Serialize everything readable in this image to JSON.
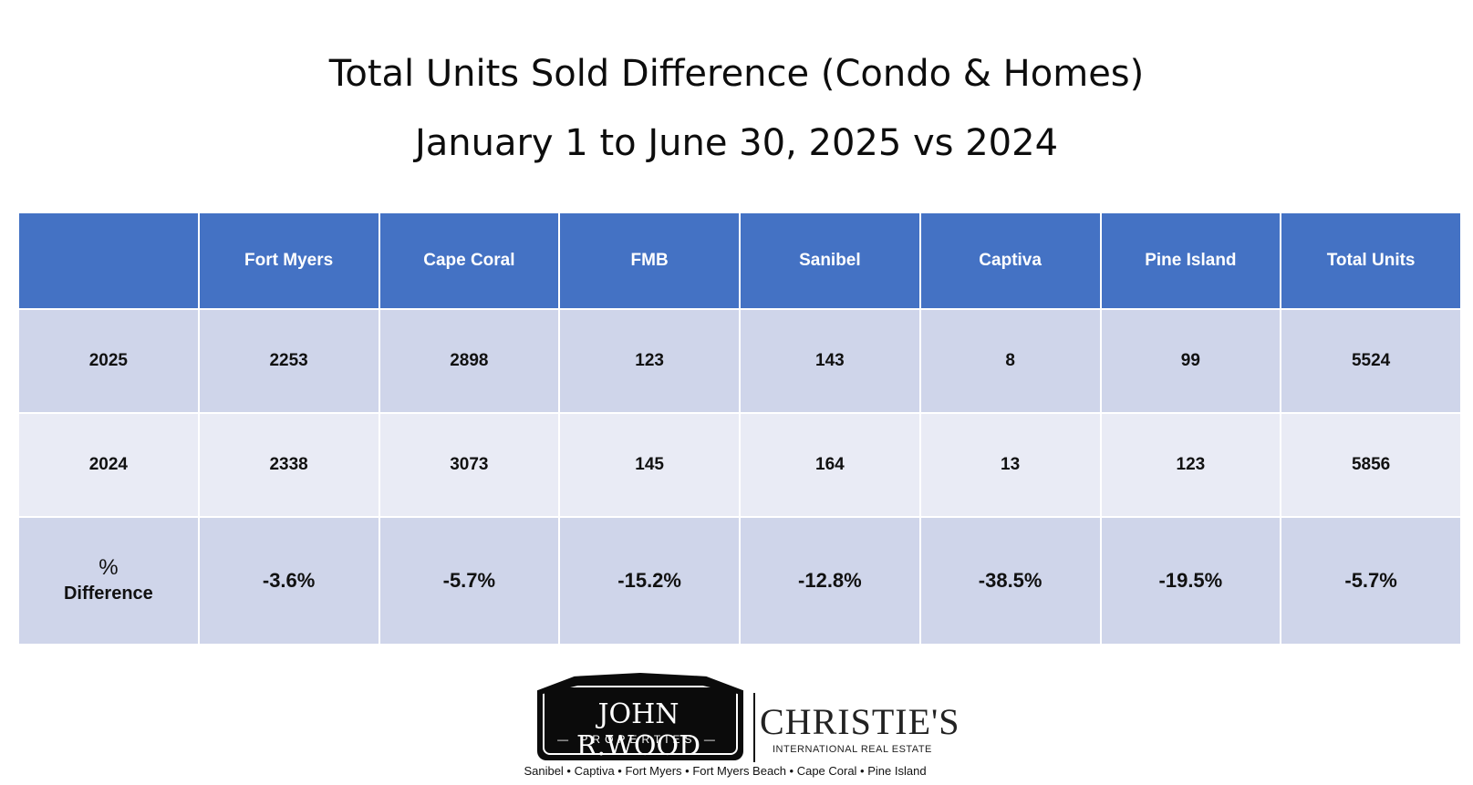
{
  "title": "Total Units Sold Difference (Condo & Homes)",
  "subtitle": "January 1 to June 30, 2025 vs 2024",
  "table": {
    "corner": "",
    "headers": [
      "Fort Myers",
      "Cape Coral",
      "FMB",
      "Sanibel",
      "Captiva",
      "Pine Island",
      "Total Units"
    ],
    "rows": [
      {
        "label": "2025",
        "values": [
          "2253",
          "2898",
          "123",
          "143",
          "8",
          "99",
          "5524"
        ]
      },
      {
        "label": "2024",
        "values": [
          "2338",
          "3073",
          "145",
          "164",
          "13",
          "123",
          "5856"
        ]
      },
      {
        "label_line1": "%",
        "label_line2": "Difference",
        "values": [
          "-3.6%",
          "-5.7%",
          "-15.2%",
          "-12.8%",
          "-38.5%",
          "-19.5%",
          "-5.7%"
        ]
      }
    ]
  },
  "colors": {
    "header_bg": "#4472c4",
    "row_dark": "#cfd5ea",
    "row_light": "#e9ebf5"
  },
  "logo": {
    "jrw_name": "JOHN R.WOOD",
    "jrw_sub": "— PROPERTIES —",
    "christies": "CHRISTIE'S",
    "christies_sub": "INTERNATIONAL REAL ESTATE",
    "locations": "Sanibel • Captiva • Fort Myers • Fort Myers Beach • Cape Coral • Pine Island"
  }
}
